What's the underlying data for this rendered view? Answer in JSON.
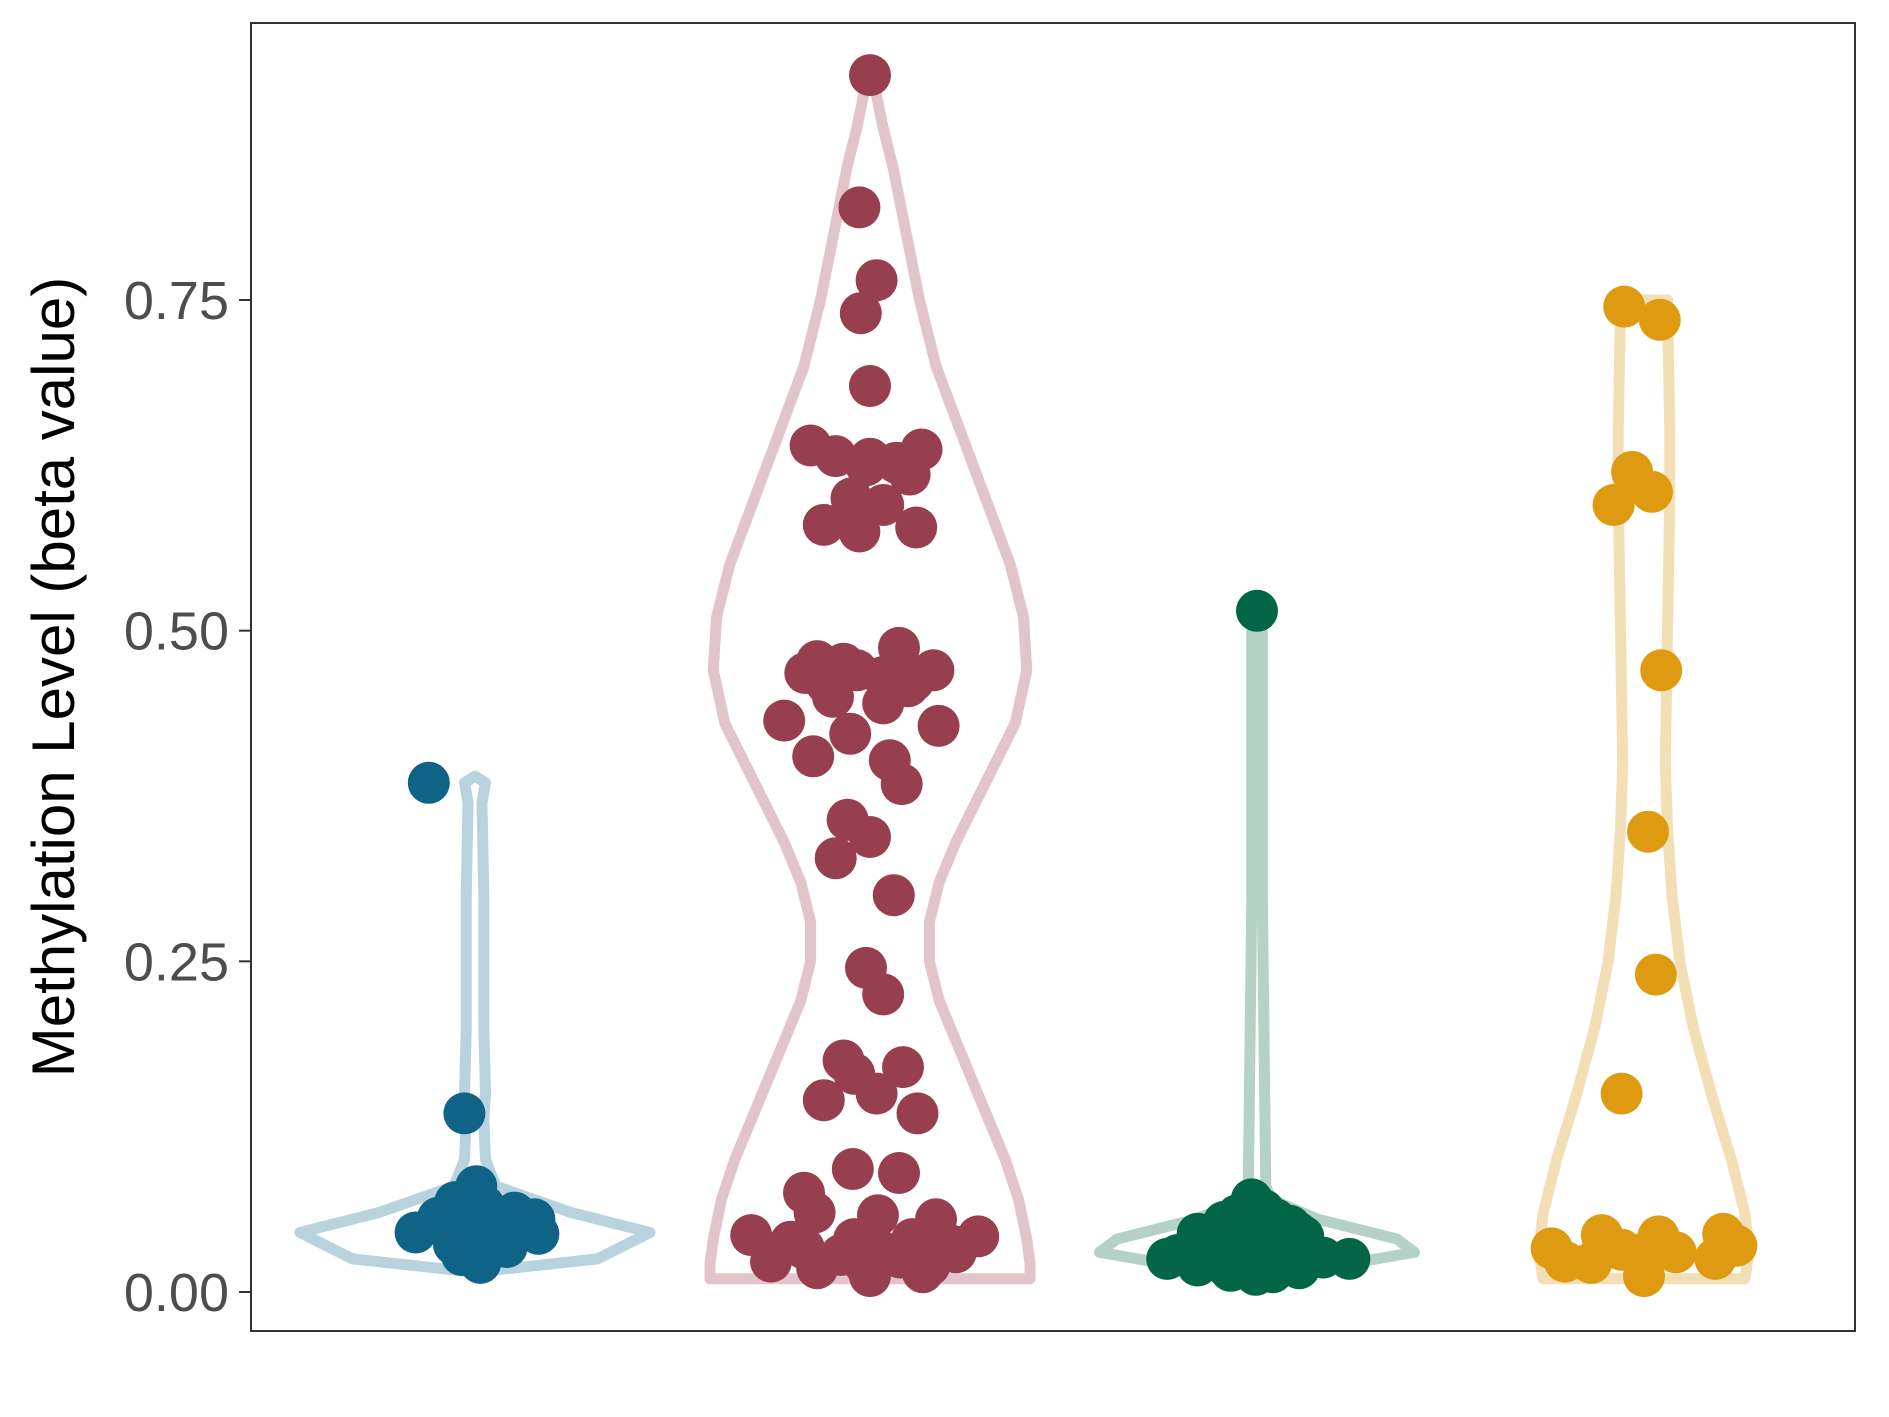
{
  "chart_data": {
    "type": "violin",
    "ylabel": "Methylation Level (beta value)",
    "ylim": [
      -0.03,
      0.96
    ],
    "yticks": [
      {
        "value": 0.0,
        "label": "0.00"
      },
      {
        "value": 0.25,
        "label": "0.25"
      },
      {
        "value": 0.5,
        "label": "0.50"
      },
      {
        "value": 0.75,
        "label": "0.75"
      }
    ],
    "grid": false,
    "series": [
      {
        "color": "#0e6387",
        "violin_color": "#b9d3de",
        "values": [
          0.385,
          0.135,
          0.08,
          0.068,
          0.065,
          0.062,
          0.06,
          0.058,
          0.056,
          0.055,
          0.054,
          0.053,
          0.05,
          0.048,
          0.047,
          0.046,
          0.045,
          0.044,
          0.043,
          0.04,
          0.038,
          0.036,
          0.034,
          0.033,
          0.028,
          0.022
        ],
        "jitter": [
          -0.35,
          -0.08,
          0.01,
          -0.15,
          0.07,
          -0.01,
          0.3,
          0.12,
          -0.28,
          0.45,
          0.08,
          0.31,
          0.42,
          -0.2,
          0.02,
          0.26,
          -0.45,
          0.48,
          0.14,
          0.05,
          0.18,
          -0.16,
          0.24,
          0.11,
          -0.1,
          0.04
        ]
      },
      {
        "color": "#973f4e",
        "violin_color": "#e2c5cb",
        "values": [
          0.92,
          0.82,
          0.765,
          0.74,
          0.685,
          0.64,
          0.637,
          0.632,
          0.63,
          0.627,
          0.625,
          0.618,
          0.6,
          0.595,
          0.58,
          0.578,
          0.575,
          0.487,
          0.477,
          0.475,
          0.472,
          0.47,
          0.47,
          0.468,
          0.465,
          0.462,
          0.46,
          0.458,
          0.45,
          0.445,
          0.432,
          0.428,
          0.422,
          0.405,
          0.402,
          0.384,
          0.357,
          0.344,
          0.328,
          0.3,
          0.245,
          0.225,
          0.175,
          0.17,
          0.165,
          0.15,
          0.145,
          0.135,
          0.093,
          0.09,
          0.075,
          0.06,
          0.058,
          0.055,
          0.043,
          0.042,
          0.04,
          0.04,
          0.038,
          0.035,
          0.033,
          0.03,
          0.03,
          0.028,
          0.026,
          0.025,
          0.023,
          0.022,
          0.02,
          0.018,
          0.015,
          0.012
        ],
        "jitter": [
          0.0,
          -0.08,
          0.05,
          -0.07,
          0.0,
          -0.45,
          0.39,
          -0.26,
          0.0,
          0.2,
          -0.03,
          0.3,
          -0.14,
          0.1,
          -0.35,
          0.35,
          -0.08,
          0.22,
          -0.4,
          -0.2,
          -0.3,
          -0.1,
          0.48,
          -0.49,
          0.1,
          0.33,
          -0.33,
          0.29,
          -0.28,
          0.1,
          -0.65,
          0.52,
          -0.15,
          -0.43,
          0.15,
          0.24,
          -0.17,
          0.0,
          -0.26,
          0.18,
          -0.03,
          0.1,
          -0.2,
          0.25,
          -0.12,
          0.05,
          -0.35,
          0.36,
          -0.13,
          0.22,
          -0.5,
          -0.42,
          0.06,
          0.5,
          -0.9,
          0.82,
          -0.12,
          0.32,
          -0.6,
          0.62,
          -0.5,
          0.65,
          0.1,
          -0.22,
          0.23,
          0.4,
          -0.75,
          -0.05,
          0.45,
          -0.4,
          0.4,
          0.0
        ],
        "outline": [
          [
            0.01,
            0.97
          ],
          [
            0.022,
            0.97
          ],
          [
            0.04,
            0.95
          ],
          [
            0.07,
            0.9
          ],
          [
            0.1,
            0.82
          ],
          [
            0.13,
            0.72
          ],
          [
            0.16,
            0.62
          ],
          [
            0.19,
            0.52
          ],
          [
            0.22,
            0.42
          ],
          [
            0.25,
            0.36
          ],
          [
            0.28,
            0.36
          ],
          [
            0.31,
            0.42
          ],
          [
            0.34,
            0.52
          ],
          [
            0.37,
            0.64
          ],
          [
            0.4,
            0.76
          ],
          [
            0.43,
            0.88
          ],
          [
            0.47,
            0.95
          ],
          [
            0.51,
            0.93
          ],
          [
            0.55,
            0.85
          ],
          [
            0.6,
            0.7
          ],
          [
            0.65,
            0.55
          ],
          [
            0.7,
            0.4
          ],
          [
            0.75,
            0.3
          ],
          [
            0.8,
            0.22
          ],
          [
            0.85,
            0.14
          ],
          [
            0.88,
            0.08
          ],
          [
            0.91,
            0.03
          ],
          [
            0.92,
            0.01
          ]
        ]
      },
      {
        "color": "#026646",
        "violin_color": "#b4d2c5",
        "values": [
          0.515,
          0.07,
          0.062,
          0.058,
          0.055,
          0.053,
          0.052,
          0.05,
          0.05,
          0.048,
          0.046,
          0.045,
          0.044,
          0.043,
          0.042,
          0.04,
          0.04,
          0.038,
          0.037,
          0.036,
          0.035,
          0.034,
          0.033,
          0.032,
          0.031,
          0.03,
          0.03,
          0.029,
          0.028,
          0.027,
          0.026,
          0.025,
          0.025,
          0.024,
          0.022,
          0.022,
          0.02,
          0.018,
          0.016,
          0.015,
          0.013
        ],
        "jitter": [
          0.0,
          -0.04,
          0.05,
          -0.15,
          0.14,
          -0.25,
          0.09,
          0.25,
          -0.1,
          0.15,
          -0.3,
          0.31,
          -0.45,
          -0.07,
          0.35,
          0.03,
          -0.2,
          0.28,
          -0.35,
          0.12,
          0.0,
          -0.25,
          0.08,
          -0.15,
          0.19,
          -0.05,
          0.4,
          -0.32,
          -0.6,
          0.26,
          0.5,
          -0.68,
          0.7,
          -0.12,
          0.21,
          -0.27,
          -0.45,
          0.32,
          -0.2,
          0.12,
          -0.01
        ]
      },
      {
        "color": "#de9b12",
        "violin_color": "#f3dfb5",
        "values": [
          0.745,
          0.735,
          0.62,
          0.605,
          0.595,
          0.47,
          0.348,
          0.24,
          0.15,
          0.044,
          0.043,
          0.042,
          0.035,
          0.033,
          0.032,
          0.03,
          0.03,
          0.025,
          0.023,
          0.022,
          0.012
        ],
        "jitter": [
          -0.15,
          0.12,
          -0.09,
          0.06,
          -0.23,
          0.13,
          0.03,
          0.09,
          -0.17,
          0.6,
          -0.32,
          0.11,
          0.7,
          -0.7,
          -0.17,
          0.24,
          0.02,
          0.54,
          -0.6,
          -0.4,
          0.0
        ],
        "outline": [
          [
            0.01,
            0.9
          ],
          [
            0.03,
            0.94
          ],
          [
            0.06,
            0.9
          ],
          [
            0.1,
            0.78
          ],
          [
            0.15,
            0.6
          ],
          [
            0.2,
            0.44
          ],
          [
            0.25,
            0.32
          ],
          [
            0.3,
            0.25
          ],
          [
            0.35,
            0.21
          ],
          [
            0.4,
            0.19
          ],
          [
            0.45,
            0.2
          ],
          [
            0.5,
            0.21
          ],
          [
            0.55,
            0.22
          ],
          [
            0.6,
            0.23
          ],
          [
            0.65,
            0.23
          ],
          [
            0.7,
            0.22
          ],
          [
            0.745,
            0.21
          ],
          [
            0.75,
            0.21
          ]
        ]
      }
    ]
  }
}
